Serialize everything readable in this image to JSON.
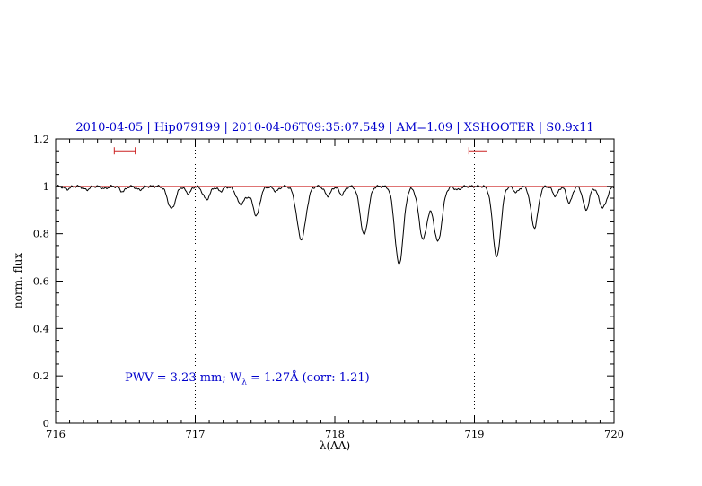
{
  "figure": {
    "background": "#ffffff"
  },
  "chart_data": {
    "type": "line",
    "title": "2010-04-05 | Hip079199 | 2010-04-06T09:35:07.549 | AM=1.09 | XSHOOTER | S0.9x11",
    "title_color": "#0000cc",
    "xlabel": "λ(AA)",
    "ylabel": "norm. flux",
    "xlim": [
      716,
      720
    ],
    "ylim": [
      0,
      1.2
    ],
    "grid": "off",
    "legend": "none",
    "x_ticks": {
      "values": [
        716,
        717,
        718,
        719,
        720
      ],
      "labels": [
        "716",
        "717",
        "718",
        "719",
        "720"
      ],
      "minor_step": 0.1
    },
    "y_ticks": {
      "values": [
        0,
        0.2,
        0.4,
        0.6,
        0.8,
        1,
        1.2
      ],
      "labels": [
        "0",
        "0.2",
        "0.4",
        "0.6",
        "0.8",
        "1",
        "1.2"
      ],
      "minor_step": 0.05
    },
    "continuum_line": {
      "y": 1.0,
      "color": "#cc2222"
    },
    "dotted_vlines": {
      "x": [
        717,
        719
      ],
      "color": "#000000"
    },
    "range_markers": {
      "color": "#cc2222",
      "y": 1.15,
      "items": [
        {
          "x1": 716.42,
          "x2": 716.57
        },
        {
          "x1": 718.96,
          "x2": 719.09
        }
      ]
    },
    "annotation": {
      "prefix": "PWV = 3.23 mm; W",
      "subscript": "λ",
      "suffix": " = 1.27Å (corr: 1.21)",
      "color": "#0000cc",
      "anchor_x": 716.5,
      "anchor_y": 0.2
    },
    "spectrum": {
      "color": "#000000",
      "continuum": 1.0,
      "noise_amplitude": 0.005,
      "sample_step": 0.006,
      "absorption_lines": [
        {
          "center": 716.08,
          "depth": 0.012,
          "sigma": 0.02
        },
        {
          "center": 716.22,
          "depth": 0.015,
          "sigma": 0.02
        },
        {
          "center": 716.35,
          "depth": 0.01,
          "sigma": 0.02
        },
        {
          "center": 716.48,
          "depth": 0.022,
          "sigma": 0.02
        },
        {
          "center": 716.6,
          "depth": 0.015,
          "sigma": 0.02
        },
        {
          "center": 716.83,
          "depth": 0.095,
          "sigma": 0.028
        },
        {
          "center": 716.95,
          "depth": 0.03,
          "sigma": 0.02
        },
        {
          "center": 717.08,
          "depth": 0.055,
          "sigma": 0.025
        },
        {
          "center": 717.18,
          "depth": 0.02,
          "sigma": 0.02
        },
        {
          "center": 717.32,
          "depth": 0.05,
          "sigma": 0.025
        },
        {
          "center": 717.38,
          "depth": 0.04,
          "sigma": 0.06
        },
        {
          "center": 717.44,
          "depth": 0.1,
          "sigma": 0.022
        },
        {
          "center": 717.58,
          "depth": 0.02,
          "sigma": 0.02
        },
        {
          "center": 717.76,
          "depth": 0.225,
          "sigma": 0.032
        },
        {
          "center": 717.95,
          "depth": 0.04,
          "sigma": 0.022
        },
        {
          "center": 718.05,
          "depth": 0.035,
          "sigma": 0.02
        },
        {
          "center": 718.21,
          "depth": 0.205,
          "sigma": 0.028
        },
        {
          "center": 718.46,
          "depth": 0.33,
          "sigma": 0.03
        },
        {
          "center": 718.63,
          "depth": 0.19,
          "sigma": 0.028
        },
        {
          "center": 718.685,
          "depth": 0.05,
          "sigma": 0.06
        },
        {
          "center": 718.74,
          "depth": 0.2,
          "sigma": 0.028
        },
        {
          "center": 718.88,
          "depth": 0.015,
          "sigma": 0.02
        },
        {
          "center": 719.16,
          "depth": 0.3,
          "sigma": 0.028
        },
        {
          "center": 719.3,
          "depth": 0.025,
          "sigma": 0.02
        },
        {
          "center": 719.43,
          "depth": 0.175,
          "sigma": 0.025
        },
        {
          "center": 719.58,
          "depth": 0.04,
          "sigma": 0.02
        },
        {
          "center": 719.68,
          "depth": 0.07,
          "sigma": 0.02
        },
        {
          "center": 719.8,
          "depth": 0.1,
          "sigma": 0.022
        },
        {
          "center": 719.92,
          "depth": 0.09,
          "sigma": 0.028
        }
      ]
    }
  }
}
